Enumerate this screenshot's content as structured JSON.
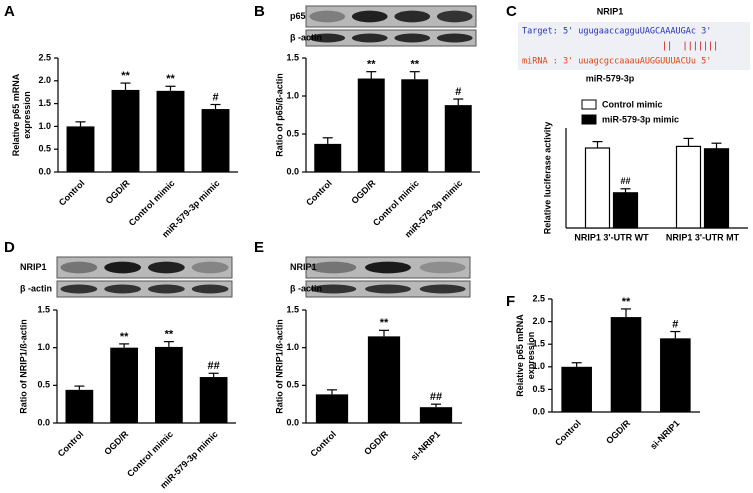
{
  "chart_data": [
    {
      "type": "bar",
      "panel": "A",
      "ylabel": [
        "Relative p65 mRNA",
        "expression"
      ],
      "categories": [
        "Control",
        "OGD/R",
        "Control mimic",
        "miR-579-3p mimic"
      ],
      "values": [
        1.0,
        1.8,
        1.78,
        1.38
      ],
      "errors": [
        0.1,
        0.15,
        0.1,
        0.1
      ],
      "annotations": [
        null,
        "**",
        "**",
        "#"
      ],
      "color": "#000000",
      "ylim": [
        0,
        2.5
      ],
      "yticks": [
        {
          "value": 0,
          "label": "0.0"
        },
        0.5,
        {
          "value": 1,
          "label": "1.0"
        },
        1.5,
        {
          "value": 2,
          "label": "2.0"
        },
        2.5
      ]
    },
    {
      "type": "bar",
      "panel": "B",
      "ylabel": [
        "Ratio of p65/ß-actin"
      ],
      "blot": [
        "p65",
        "β -actin"
      ],
      "categories": [
        "Control",
        "OGD/R",
        "Control mimic",
        "miR-579-3p mimic"
      ],
      "values": [
        0.37,
        1.23,
        1.22,
        0.88
      ],
      "errors": [
        0.08,
        0.09,
        0.1,
        0.08
      ],
      "annotations": [
        null,
        "**",
        "**",
        "#"
      ],
      "color": "#000000",
      "ylim": [
        0,
        1.5
      ],
      "yticks": [
        {
          "value": 0,
          "label": "0.0"
        },
        0.5,
        {
          "value": 1,
          "label": "1.0"
        },
        1.5
      ]
    },
    {
      "type": "grouped-bar",
      "panel": "C",
      "title": "NRIP1",
      "subtitle": "miR-579-3p",
      "sequence": {
        "target": "Target: 5' ugugaaccagguUAGCAAAUGAc 3'",
        "pairs": "||  |||||||",
        "mirna": "miRNA : 3' uuagcgccaaauAUGGUUUACUu 5'"
      },
      "ylabel": [
        "Relative luciferase activity"
      ],
      "categories": [
        "NRIP1 3'-UTR WT",
        "NRIP1 3'-UTR MT"
      ],
      "series": [
        {
          "name": "Control mimic",
          "color": "#ffffff",
          "values": [
            1.0,
            1.02
          ],
          "errors": [
            0.08,
            0.1
          ],
          "annotations": [
            null,
            null
          ]
        },
        {
          "name": "miR-579-3p mimic",
          "color": "#000000",
          "values": [
            0.44,
            0.99
          ],
          "errors": [
            0.05,
            0.07
          ],
          "annotations": [
            "##",
            null
          ]
        }
      ],
      "ylim": [
        0,
        1.25
      ]
    },
    {
      "type": "bar",
      "panel": "D",
      "ylabel": [
        "Ratio of NRIP1/ß-actin"
      ],
      "blot": [
        "NRIP1",
        "β -actin"
      ],
      "categories": [
        "Control",
        "OGD/R",
        "Control mimic",
        "miR-579-3p mimic"
      ],
      "values": [
        0.44,
        1.0,
        1.01,
        0.61
      ],
      "errors": [
        0.05,
        0.05,
        0.07,
        0.05
      ],
      "annotations": [
        null,
        "**",
        "**",
        "##"
      ],
      "color": "#000000",
      "ylim": [
        0,
        1.5
      ],
      "yticks": [
        {
          "value": 0,
          "label": "0.0"
        },
        0.5,
        {
          "value": 1,
          "label": "1.0"
        },
        1.5
      ]
    },
    {
      "type": "bar",
      "panel": "E",
      "ylabel": [
        "Ratio of NRIP1/ß-actin"
      ],
      "blot": [
        "NRIP1",
        "β -actin"
      ],
      "categories": [
        "Control",
        "OGD/R",
        "si-NRIP1"
      ],
      "values": [
        0.38,
        1.15,
        0.21
      ],
      "errors": [
        0.06,
        0.08,
        0.04
      ],
      "annotations": [
        null,
        "**",
        "##"
      ],
      "color": "#000000",
      "ylim": [
        0,
        1.5
      ],
      "yticks": [
        {
          "value": 0,
          "label": "0.0"
        },
        0.5,
        {
          "value": 1,
          "label": "1.0"
        },
        1.5
      ]
    },
    {
      "type": "bar",
      "panel": "F",
      "ylabel": [
        "Relative p65 mRNA",
        "expression"
      ],
      "categories": [
        "Control",
        "OGD/R",
        "si-NRIP1"
      ],
      "values": [
        1.0,
        2.1,
        1.63
      ],
      "errors": [
        0.09,
        0.18,
        0.15
      ],
      "annotations": [
        null,
        "**",
        "#"
      ],
      "color": "#000000",
      "ylim": [
        0,
        2.5
      ],
      "yticks": [
        {
          "value": 0,
          "label": "0.0"
        },
        0.5,
        {
          "value": 1,
          "label": "1.0"
        },
        1.5,
        {
          "value": 2,
          "label": "2.0"
        },
        2.5
      ]
    }
  ]
}
